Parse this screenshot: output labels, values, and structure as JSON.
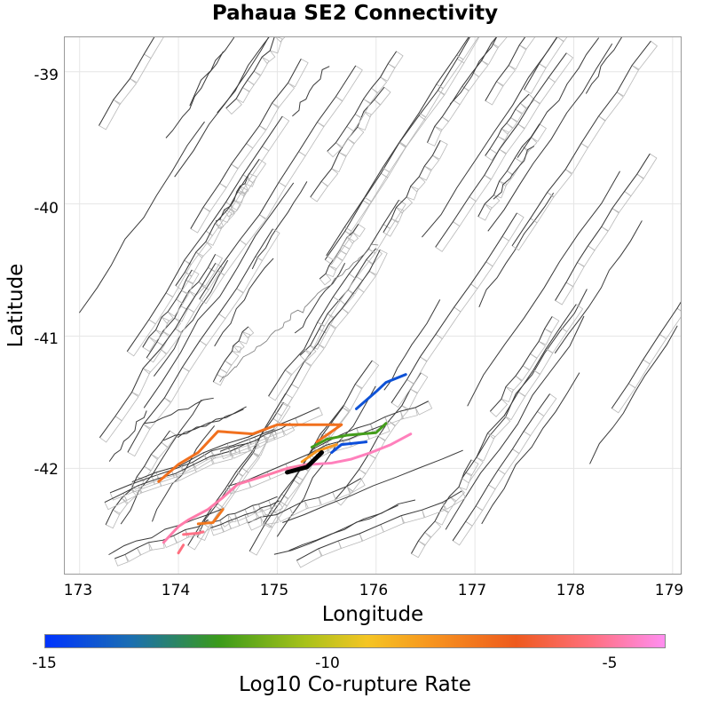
{
  "title": "Pahaua SE2 Connectivity",
  "x_axis": {
    "label": "Longitude",
    "ticks": [
      "173",
      "174",
      "175",
      "176",
      "177",
      "178",
      "179"
    ],
    "range": [
      172.85,
      179.1
    ]
  },
  "y_axis": {
    "label": "Latitude",
    "ticks": [
      "-39",
      "-40",
      "-41",
      "-42"
    ],
    "range": [
      -42.81,
      -38.74
    ]
  },
  "colorbar": {
    "label": "Log10 Co-rupture Rate",
    "ticks": [
      "-15",
      "-10",
      "-5"
    ],
    "range": [
      -15,
      -4
    ]
  },
  "colors": {
    "background_fault": "#3a3a3a",
    "fault_trace_box": "#b8b8b8",
    "coastline": "#777777",
    "target_fault": "#000000",
    "grid": "#e6e6e6"
  },
  "highlighted_faults": [
    {
      "log10_rate": -4.6,
      "coords": [
        [
          175.35,
          -41.97
        ],
        [
          175.55,
          -41.96
        ],
        [
          175.75,
          -41.93
        ],
        [
          175.95,
          -41.88
        ],
        [
          176.15,
          -41.82
        ],
        [
          176.35,
          -41.74
        ]
      ]
    },
    {
      "log10_rate": -4.8,
      "coords": [
        [
          173.85,
          -42.56
        ],
        [
          174.0,
          -42.44
        ],
        [
          174.1,
          -42.39
        ],
        [
          174.3,
          -42.31
        ],
        [
          174.45,
          -42.22
        ],
        [
          174.6,
          -42.12
        ],
        [
          174.9,
          -42.05
        ],
        [
          175.1,
          -42.0
        ],
        [
          175.3,
          -41.97
        ]
      ]
    },
    {
      "log10_rate": -5.2,
      "coords": [
        [
          174.05,
          -42.5
        ],
        [
          174.2,
          -42.49
        ],
        [
          174.25,
          -42.48
        ]
      ]
    },
    {
      "log10_rate": -5.3,
      "coords": [
        [
          174.0,
          -42.64
        ],
        [
          174.05,
          -42.58
        ]
      ]
    },
    {
      "log10_rate": -7.2,
      "coords": [
        [
          173.8,
          -42.1
        ],
        [
          174.0,
          -41.97
        ],
        [
          174.2,
          -41.88
        ],
        [
          174.4,
          -41.72
        ],
        [
          174.75,
          -41.74
        ],
        [
          175.0,
          -41.67
        ],
        [
          175.65,
          -41.67
        ],
        [
          175.4,
          -41.8
        ]
      ]
    },
    {
      "log10_rate": -7.4,
      "coords": [
        [
          174.2,
          -42.42
        ],
        [
          174.35,
          -42.41
        ],
        [
          174.45,
          -42.31
        ]
      ]
    },
    {
      "log10_rate": -8.2,
      "coords": [
        [
          175.25,
          -41.95
        ],
        [
          175.4,
          -41.87
        ],
        [
          175.6,
          -41.82
        ]
      ]
    },
    {
      "log10_rate": -11.8,
      "coords": [
        [
          175.35,
          -41.84
        ],
        [
          175.5,
          -41.78
        ],
        [
          175.7,
          -41.75
        ],
        [
          176.0,
          -41.73
        ],
        [
          176.1,
          -41.66
        ]
      ]
    },
    {
      "log10_rate": -14.2,
      "coords": [
        [
          175.8,
          -41.55
        ],
        [
          176.0,
          -41.42
        ],
        [
          176.1,
          -41.35
        ],
        [
          176.3,
          -41.29
        ]
      ]
    },
    {
      "log10_rate": -14.3,
      "coords": [
        [
          175.55,
          -41.88
        ],
        [
          175.65,
          -41.82
        ],
        [
          175.9,
          -41.8
        ]
      ]
    }
  ],
  "target_fault": {
    "name": "Pahaua SE2",
    "coords": [
      [
        175.1,
        -42.03
      ],
      [
        175.3,
        -41.99
      ],
      [
        175.45,
        -41.88
      ]
    ]
  }
}
